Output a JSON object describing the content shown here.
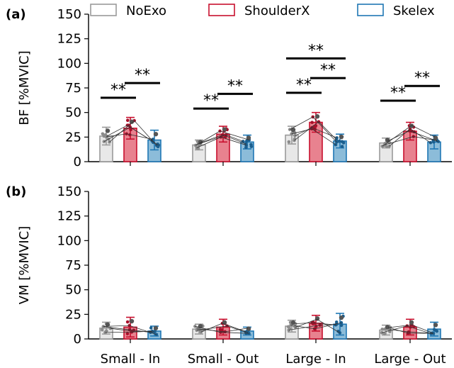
{
  "chart_data": [
    {
      "panel_label": "(a)",
      "type": "bar",
      "ylabel": "BF [%MVIC]",
      "ylim": [
        0,
        150
      ],
      "yticks": [
        "0",
        "25",
        "50",
        "75",
        "100",
        "125",
        "150"
      ],
      "categories": [
        "Small - In",
        "Small - Out",
        "Large - In",
        "Large - Out"
      ],
      "series": [
        {
          "name": "NoExo",
          "values": [
            26,
            17,
            27,
            19
          ],
          "err": [
            9,
            5,
            9,
            5
          ]
        },
        {
          "name": "ShoulderX",
          "values": [
            34,
            28,
            40,
            31
          ],
          "err": [
            11,
            8,
            10,
            9
          ]
        },
        {
          "name": "Skelex",
          "values": [
            22,
            20,
            21,
            20
          ],
          "err": [
            10,
            7,
            7,
            7
          ]
        }
      ],
      "significance": [
        {
          "label": "**",
          "category": 0,
          "from": 0,
          "to": 1,
          "y": 65
        },
        {
          "label": "**",
          "category": 0,
          "from": 1,
          "to": 2,
          "y": 80
        },
        {
          "label": "**",
          "category": 1,
          "from": 0,
          "to": 1,
          "y": 54
        },
        {
          "label": "**",
          "category": 1,
          "from": 1,
          "to": 2,
          "y": 69
        },
        {
          "label": "**",
          "category": 2,
          "from": 0,
          "to": 1,
          "y": 70
        },
        {
          "label": "**",
          "category": 2,
          "from": 1,
          "to": 2,
          "y": 85
        },
        {
          "label": "**",
          "category": 2,
          "from": 0,
          "to": 2,
          "y": 105
        },
        {
          "label": "**",
          "category": 3,
          "from": 0,
          "to": 1,
          "y": 62
        },
        {
          "label": "**",
          "category": 3,
          "from": 1,
          "to": 2,
          "y": 77
        }
      ]
    },
    {
      "panel_label": "(b)",
      "type": "bar",
      "ylabel": "VM [%MVIC]",
      "ylim": [
        0,
        150
      ],
      "yticks": [
        "0",
        "25",
        "50",
        "75",
        "100",
        "125",
        "150"
      ],
      "categories": [
        "Small - In",
        "Small - Out",
        "Large - In",
        "Large - Out"
      ],
      "series": [
        {
          "name": "NoExo",
          "values": [
            11,
            10,
            13,
            9
          ],
          "err": [
            6,
            5,
            6,
            5
          ]
        },
        {
          "name": "ShoulderX",
          "values": [
            12,
            12,
            16,
            12
          ],
          "err": [
            10,
            8,
            8,
            8
          ]
        },
        {
          "name": "Skelex",
          "values": [
            8,
            8,
            15,
            10
          ],
          "err": [
            5,
            4,
            11,
            7
          ]
        }
      ],
      "significance": []
    }
  ],
  "legend": {
    "items": [
      {
        "label": "NoExo",
        "fill": "#e8e8e8",
        "stroke": "#9a9a9a",
        "dark": "#8c8c8c"
      },
      {
        "label": "ShoulderX",
        "fill": "#e8828f",
        "stroke": "#c8102e",
        "dark": "#a8102a"
      },
      {
        "label": "Skelex",
        "fill": "#8cbcd9",
        "stroke": "#1f77b4",
        "dark": "#1b5f8f"
      }
    ],
    "placement": "top"
  }
}
